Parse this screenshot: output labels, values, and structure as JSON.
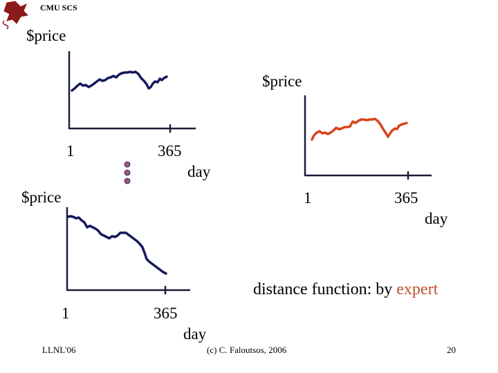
{
  "header": {
    "org_label": "CMU SCS"
  },
  "charts": [
    {
      "ylabel": "$price",
      "xlabel": "day",
      "x_ticks": [
        "1",
        "365"
      ],
      "line_color": "#14185c"
    },
    {
      "ylabel": "$price",
      "xlabel": "day",
      "x_ticks": [
        "1",
        "365"
      ],
      "line_color": "#d8431a"
    },
    {
      "ylabel": "$price",
      "xlabel": "day",
      "x_ticks": [
        "1",
        "365"
      ],
      "line_color": "#14185c"
    }
  ],
  "ellipsis_dots": 3,
  "caption": {
    "prefix": "distance function: by ",
    "highlight": "expert",
    "highlight_color": "#c0502a"
  },
  "footer": {
    "left": "LLNL'06",
    "center": "(c) C. Faloutsos, 2006",
    "page_number": "20"
  }
}
